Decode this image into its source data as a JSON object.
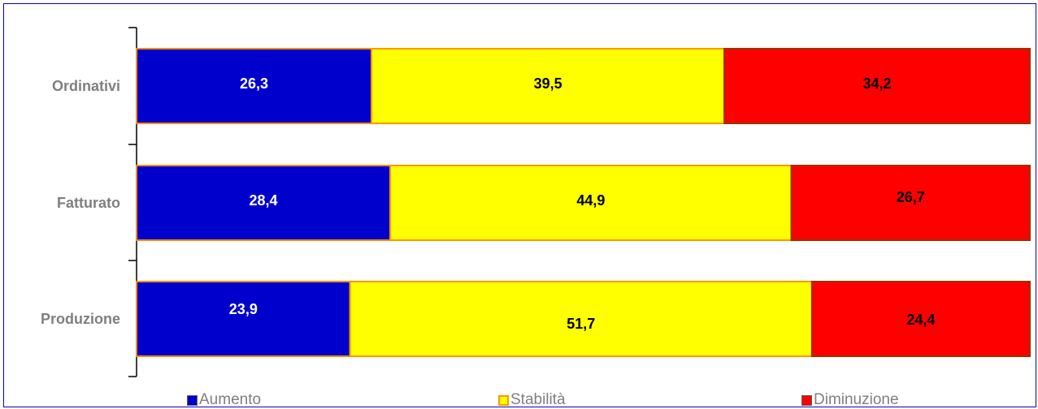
{
  "chart_data": {
    "type": "bar",
    "orientation": "horizontal",
    "stacked": true,
    "categories": [
      "Ordinativi",
      "Fatturato",
      "Produzione"
    ],
    "series": [
      {
        "name": "Aumento",
        "values": [
          26.3,
          28.4,
          23.9
        ],
        "labels": [
          "26,3",
          "28,4",
          "23,9"
        ],
        "color": "#0000cc",
        "label_color": "#ffffff",
        "border_color": "#ff8c00"
      },
      {
        "name": "Stabilità",
        "values": [
          39.5,
          44.9,
          51.7
        ],
        "labels": [
          "39,5",
          "44,9",
          "51,7"
        ],
        "color": "#ffff00",
        "label_color": "#000000",
        "border_color": "#ff9900"
      },
      {
        "name": "Diminuzione",
        "values": [
          34.2,
          26.7,
          24.4
        ],
        "labels": [
          "34,2",
          "26,7",
          "24,4"
        ],
        "color": "#ff0000",
        "label_color": "#000000",
        "border_color": "#993300"
      }
    ],
    "xlim": [
      0,
      100
    ],
    "grid": false,
    "legend_position": "bottom",
    "colors": {
      "frame": "#0000c8",
      "axis": "#000000",
      "category_label": "#7f7f7f",
      "legend_text": "#7f7f7f"
    }
  }
}
